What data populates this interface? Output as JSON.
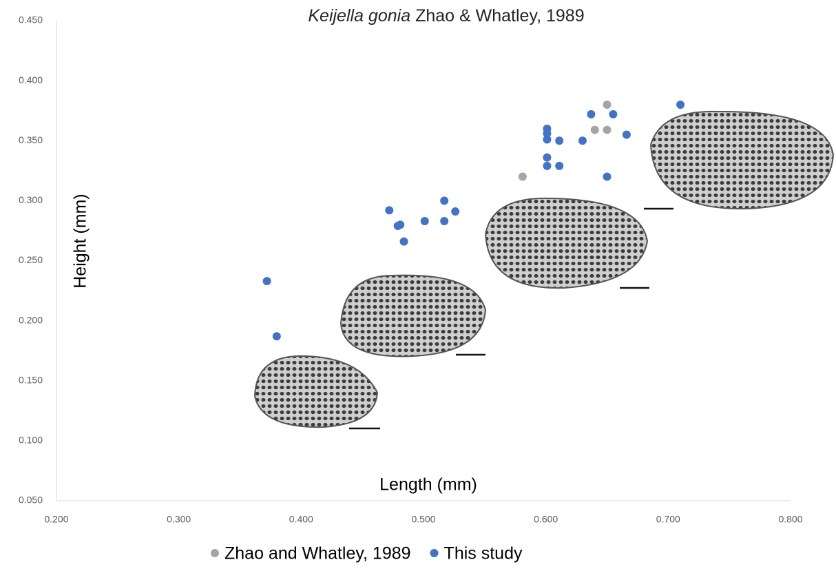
{
  "chart_data": {
    "type": "scatter",
    "title": {
      "species": "Keijella gonia",
      "authority": "Zhao & Whatley, 1989"
    },
    "x_label": "Length (mm)",
    "y_label": "Height (mm)",
    "xlim": [
      0.2,
      0.8
    ],
    "ylim": [
      0.05,
      0.45
    ],
    "xticks": [
      {
        "value": 0.2,
        "label": "0.200"
      },
      {
        "value": 0.3,
        "label": "0.300"
      },
      {
        "value": 0.4,
        "label": "0.400"
      },
      {
        "value": 0.5,
        "label": "0.500"
      },
      {
        "value": 0.6,
        "label": "0.600"
      },
      {
        "value": 0.7,
        "label": "0.700"
      },
      {
        "value": 0.8,
        "label": "0.800"
      }
    ],
    "yticks": [
      {
        "value": 0.05,
        "label": "0.050"
      },
      {
        "value": 0.1,
        "label": "0.100"
      },
      {
        "value": 0.15,
        "label": "0.150"
      },
      {
        "value": 0.2,
        "label": "0.200"
      },
      {
        "value": 0.25,
        "label": "0.250"
      },
      {
        "value": 0.3,
        "label": "0.300"
      },
      {
        "value": 0.35,
        "label": "0.350"
      },
      {
        "value": 0.4,
        "label": "0.400"
      },
      {
        "value": 0.45,
        "label": "0.450"
      }
    ],
    "grid": false,
    "legend": "bottom",
    "series": [
      {
        "name": "Zhao and Whatley, 1989",
        "color": "#a5a5a5",
        "x": [
          0.581,
          0.64,
          0.65,
          0.65
        ],
        "values": [
          0.32,
          0.359,
          0.359,
          0.38
        ]
      },
      {
        "name": "This study",
        "color": "#4472c4",
        "x": [
          0.38,
          0.372,
          0.472,
          0.479,
          0.481,
          0.484,
          0.501,
          0.517,
          0.517,
          0.526,
          0.601,
          0.601,
          0.601,
          0.601,
          0.601,
          0.611,
          0.611,
          0.63,
          0.637,
          0.655,
          0.65,
          0.666,
          0.71
        ],
        "values": [
          0.187,
          0.233,
          0.292,
          0.279,
          0.28,
          0.266,
          0.283,
          0.3,
          0.283,
          0.291,
          0.36,
          0.356,
          0.351,
          0.336,
          0.329,
          0.35,
          0.329,
          0.35,
          0.372,
          0.372,
          0.32,
          0.355,
          0.38
        ]
      }
    ]
  }
}
